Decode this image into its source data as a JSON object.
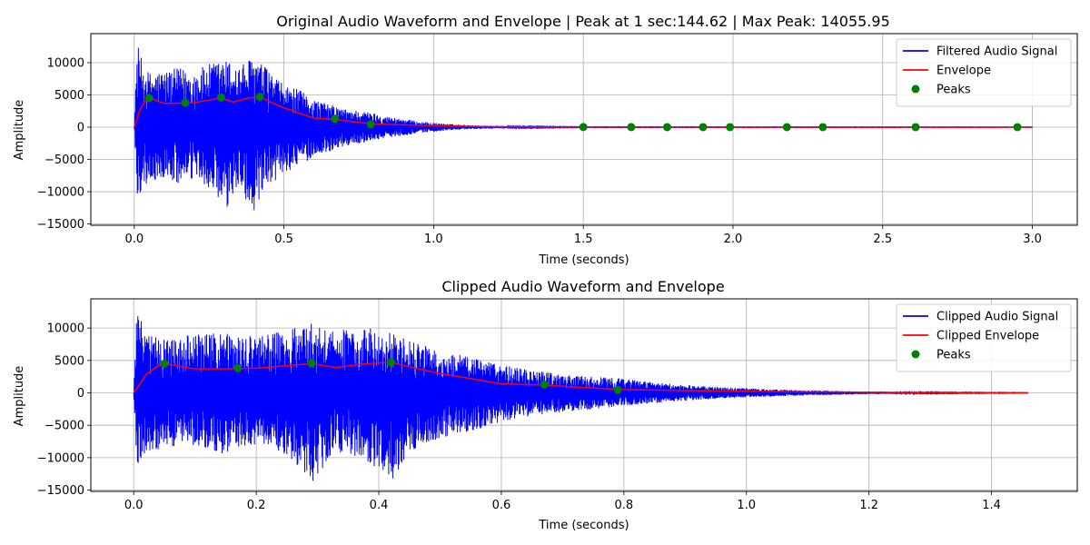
{
  "chart_data": [
    {
      "type": "line",
      "title": "Original Audio Waveform and Envelope | Peak at 1 sec:144.62 | Max Peak: 14055.95",
      "xlabel": "Time (seconds)",
      "ylabel": "Amplitude",
      "xlim": [
        -0.145,
        3.15
      ],
      "ylim": [
        -15200,
        14500
      ],
      "xticks": [
        0.0,
        0.5,
        1.0,
        1.5,
        2.0,
        2.5,
        3.0
      ],
      "xtick_labels": [
        "0.0",
        "0.5",
        "1.0",
        "1.5",
        "2.0",
        "2.5",
        "3.0"
      ],
      "yticks": [
        -15000,
        -10000,
        -5000,
        0,
        5000,
        10000
      ],
      "ytick_labels": [
        "−15000",
        "−10000",
        "−5000",
        "0",
        "5000",
        "10000"
      ],
      "grid": true,
      "legend_position": "top-right",
      "series": [
        {
          "name": "Filtered Audio Signal",
          "color": "#0000ff",
          "style": "line",
          "envelope_x": [
            0.0,
            0.01,
            0.03,
            0.05,
            0.1,
            0.15,
            0.2,
            0.25,
            0.3,
            0.35,
            0.4,
            0.45,
            0.5,
            0.55,
            0.6,
            0.65,
            0.7,
            0.75,
            0.8,
            0.85,
            0.9,
            0.95,
            1.0,
            1.05,
            1.1,
            1.2,
            1.3,
            1.5,
            3.0
          ],
          "upper": [
            0,
            13200,
            9500,
            8500,
            8800,
            9200,
            8700,
            9800,
            10500,
            9600,
            11000,
            8800,
            6500,
            5800,
            4300,
            3600,
            2800,
            2600,
            2200,
            1600,
            1300,
            900,
            700,
            500,
            350,
            200,
            120,
            60,
            40
          ],
          "lower": [
            0,
            -11500,
            -9000,
            -8800,
            -8000,
            -9000,
            -8200,
            -9500,
            -14000,
            -9000,
            -13800,
            -9500,
            -7000,
            -6200,
            -4500,
            -3800,
            -3000,
            -2600,
            -2000,
            -1600,
            -1300,
            -900,
            -700,
            -500,
            -350,
            -200,
            -120,
            -60,
            -40
          ]
        },
        {
          "name": "Envelope",
          "color": "#ff0000",
          "style": "line",
          "x": [
            0.0,
            0.02,
            0.04,
            0.06,
            0.08,
            0.1,
            0.15,
            0.2,
            0.25,
            0.29,
            0.33,
            0.38,
            0.42,
            0.45,
            0.5,
            0.55,
            0.6,
            0.67,
            0.72,
            0.8,
            0.9,
            1.0,
            1.1,
            1.2,
            1.3,
            1.5,
            2.0,
            2.5,
            3.0
          ],
          "y": [
            0,
            2800,
            4200,
            4400,
            4000,
            3700,
            3700,
            3800,
            4200,
            4500,
            3900,
            4500,
            4700,
            4000,
            3000,
            2200,
            1400,
            1200,
            900,
            500,
            350,
            250,
            150,
            80,
            40,
            20,
            10,
            5,
            0
          ]
        },
        {
          "name": "Peaks",
          "color": "#008000",
          "style": "marker",
          "x": [
            0.05,
            0.17,
            0.29,
            0.42,
            0.67,
            0.79,
            1.5,
            1.66,
            1.78,
            1.9,
            1.99,
            2.18,
            2.3,
            2.61,
            2.95
          ],
          "y": [
            4500,
            3800,
            4600,
            4700,
            1300,
            450,
            20,
            15,
            10,
            10,
            8,
            5,
            5,
            3,
            2
          ]
        }
      ]
    },
    {
      "type": "line",
      "title": "Clipped Audio Waveform and Envelope",
      "xlabel": "Time (seconds)",
      "ylabel": "Amplitude",
      "xlim": [
        -0.07,
        1.54
      ],
      "ylim": [
        -15200,
        14500
      ],
      "xticks": [
        0.0,
        0.2,
        0.4,
        0.6,
        0.8,
        1.0,
        1.2,
        1.4
      ],
      "xtick_labels": [
        "0.0",
        "0.2",
        "0.4",
        "0.6",
        "0.8",
        "1.0",
        "1.2",
        "1.4"
      ],
      "yticks": [
        -15000,
        -10000,
        -5000,
        0,
        5000,
        10000
      ],
      "ytick_labels": [
        "−15000",
        "−10000",
        "−5000",
        "0",
        "5000",
        "10000"
      ],
      "grid": true,
      "legend_position": "top-right",
      "series": [
        {
          "name": "Clipped Audio Signal",
          "color": "#0000ff",
          "style": "line",
          "envelope_x": [
            0.0,
            0.005,
            0.02,
            0.05,
            0.1,
            0.15,
            0.2,
            0.25,
            0.29,
            0.33,
            0.38,
            0.42,
            0.45,
            0.5,
            0.55,
            0.6,
            0.65,
            0.7,
            0.75,
            0.8,
            0.85,
            0.9,
            1.0,
            1.1,
            1.2,
            1.3,
            1.46
          ],
          "upper": [
            0,
            13200,
            9000,
            8500,
            9000,
            9500,
            8700,
            9800,
            10800,
            9500,
            10500,
            9500,
            8000,
            6500,
            5500,
            4300,
            3500,
            2800,
            2500,
            2200,
            1600,
            1200,
            700,
            400,
            200,
            100,
            40
          ],
          "lower": [
            0,
            -11500,
            -9000,
            -8800,
            -8000,
            -9500,
            -8000,
            -9500,
            -14000,
            -9000,
            -10500,
            -13800,
            -9000,
            -7000,
            -6000,
            -4500,
            -3500,
            -3000,
            -2500,
            -2000,
            -1600,
            -1200,
            -700,
            -400,
            -200,
            -100,
            -40
          ]
        },
        {
          "name": "Clipped Envelope",
          "color": "#ff0000",
          "style": "line",
          "x": [
            0.0,
            0.02,
            0.04,
            0.06,
            0.08,
            0.1,
            0.15,
            0.2,
            0.25,
            0.29,
            0.33,
            0.38,
            0.42,
            0.45,
            0.5,
            0.55,
            0.6,
            0.67,
            0.72,
            0.8,
            0.9,
            1.0,
            1.1,
            1.2,
            1.3,
            1.46
          ],
          "y": [
            0,
            2800,
            4200,
            4400,
            4000,
            3700,
            3700,
            3800,
            4200,
            4500,
            3900,
            4500,
            4700,
            4000,
            3000,
            2200,
            1400,
            1200,
            900,
            500,
            350,
            250,
            150,
            80,
            40,
            0
          ]
        },
        {
          "name": "Peaks",
          "color": "#008000",
          "style": "marker",
          "x": [
            0.05,
            0.17,
            0.29,
            0.42,
            0.67,
            0.79
          ],
          "y": [
            4500,
            3800,
            4600,
            4700,
            1300,
            450
          ]
        }
      ]
    }
  ]
}
